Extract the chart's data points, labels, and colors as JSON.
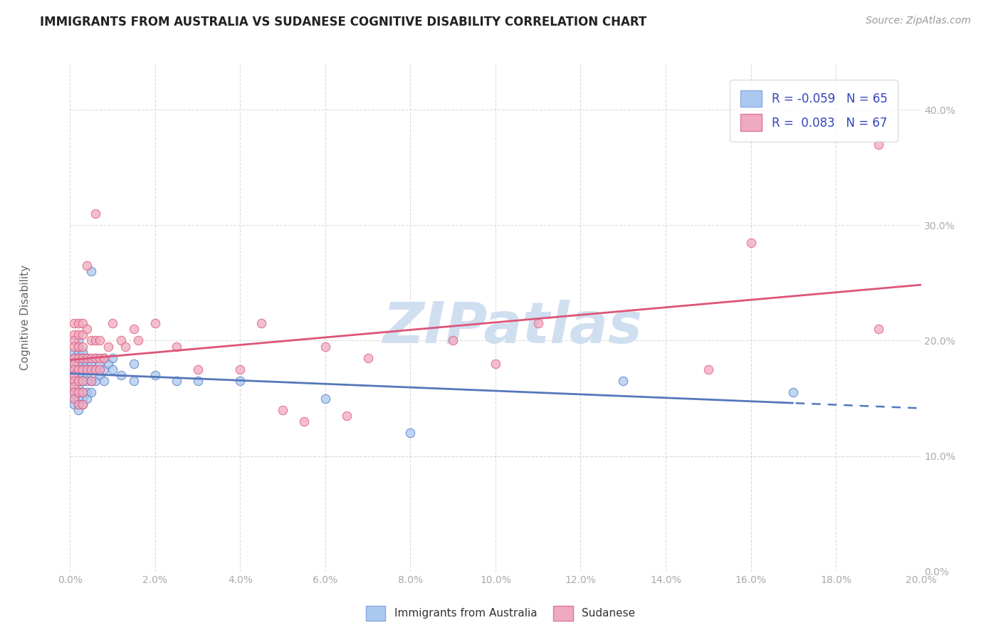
{
  "title": "IMMIGRANTS FROM AUSTRALIA VS SUDANESE COGNITIVE DISABILITY CORRELATION CHART",
  "source": "Source: ZipAtlas.com",
  "ylabel": "Cognitive Disability",
  "legend_label1": "Immigrants from Australia",
  "legend_label2": "Sudanese",
  "R1": -0.059,
  "N1": 65,
  "R2": 0.083,
  "N2": 67,
  "xlim": [
    0.0,
    0.2
  ],
  "ylim": [
    0.0,
    0.44
  ],
  "xticks": [
    0.0,
    0.02,
    0.04,
    0.06,
    0.08,
    0.1,
    0.12,
    0.14,
    0.16,
    0.18,
    0.2
  ],
  "yticks": [
    0.0,
    0.1,
    0.2,
    0.3,
    0.4
  ],
  "color_blue": "#aac8f0",
  "color_pink": "#f0aac0",
  "color_blue_line": "#5577bb",
  "color_pink_line": "#dd5577",
  "watermark": "ZIPatlas",
  "watermark_color": "#d0dff0",
  "background_color": "#ffffff",
  "grid_color": "#cccccc",
  "scatter_blue": [
    [
      0.001,
      0.19
    ],
    [
      0.001,
      0.185
    ],
    [
      0.001,
      0.18
    ],
    [
      0.001,
      0.175
    ],
    [
      0.001,
      0.17
    ],
    [
      0.001,
      0.165
    ],
    [
      0.001,
      0.16
    ],
    [
      0.001,
      0.155
    ],
    [
      0.001,
      0.15
    ],
    [
      0.001,
      0.145
    ],
    [
      0.002,
      0.2
    ],
    [
      0.002,
      0.19
    ],
    [
      0.002,
      0.185
    ],
    [
      0.002,
      0.18
    ],
    [
      0.002,
      0.175
    ],
    [
      0.002,
      0.17
    ],
    [
      0.002,
      0.165
    ],
    [
      0.002,
      0.16
    ],
    [
      0.002,
      0.155
    ],
    [
      0.002,
      0.15
    ],
    [
      0.002,
      0.145
    ],
    [
      0.002,
      0.14
    ],
    [
      0.003,
      0.19
    ],
    [
      0.003,
      0.185
    ],
    [
      0.003,
      0.18
    ],
    [
      0.003,
      0.175
    ],
    [
      0.003,
      0.17
    ],
    [
      0.003,
      0.165
    ],
    [
      0.003,
      0.155
    ],
    [
      0.003,
      0.15
    ],
    [
      0.003,
      0.145
    ],
    [
      0.004,
      0.185
    ],
    [
      0.004,
      0.18
    ],
    [
      0.004,
      0.175
    ],
    [
      0.004,
      0.17
    ],
    [
      0.004,
      0.165
    ],
    [
      0.004,
      0.155
    ],
    [
      0.004,
      0.15
    ],
    [
      0.005,
      0.26
    ],
    [
      0.005,
      0.18
    ],
    [
      0.005,
      0.175
    ],
    [
      0.005,
      0.165
    ],
    [
      0.005,
      0.155
    ],
    [
      0.006,
      0.185
    ],
    [
      0.006,
      0.175
    ],
    [
      0.006,
      0.165
    ],
    [
      0.007,
      0.18
    ],
    [
      0.007,
      0.17
    ],
    [
      0.008,
      0.185
    ],
    [
      0.008,
      0.175
    ],
    [
      0.008,
      0.165
    ],
    [
      0.009,
      0.18
    ],
    [
      0.01,
      0.185
    ],
    [
      0.01,
      0.175
    ],
    [
      0.012,
      0.17
    ],
    [
      0.015,
      0.18
    ],
    [
      0.015,
      0.165
    ],
    [
      0.02,
      0.17
    ],
    [
      0.025,
      0.165
    ],
    [
      0.03,
      0.165
    ],
    [
      0.04,
      0.165
    ],
    [
      0.06,
      0.15
    ],
    [
      0.08,
      0.12
    ],
    [
      0.13,
      0.165
    ],
    [
      0.17,
      0.155
    ]
  ],
  "scatter_pink": [
    [
      0.001,
      0.215
    ],
    [
      0.001,
      0.205
    ],
    [
      0.001,
      0.2
    ],
    [
      0.001,
      0.195
    ],
    [
      0.001,
      0.185
    ],
    [
      0.001,
      0.18
    ],
    [
      0.001,
      0.175
    ],
    [
      0.001,
      0.17
    ],
    [
      0.001,
      0.165
    ],
    [
      0.001,
      0.16
    ],
    [
      0.001,
      0.155
    ],
    [
      0.001,
      0.15
    ],
    [
      0.002,
      0.215
    ],
    [
      0.002,
      0.205
    ],
    [
      0.002,
      0.195
    ],
    [
      0.002,
      0.185
    ],
    [
      0.002,
      0.175
    ],
    [
      0.002,
      0.165
    ],
    [
      0.002,
      0.155
    ],
    [
      0.002,
      0.145
    ],
    [
      0.003,
      0.215
    ],
    [
      0.003,
      0.205
    ],
    [
      0.003,
      0.195
    ],
    [
      0.003,
      0.185
    ],
    [
      0.003,
      0.175
    ],
    [
      0.003,
      0.165
    ],
    [
      0.003,
      0.155
    ],
    [
      0.003,
      0.145
    ],
    [
      0.004,
      0.21
    ],
    [
      0.004,
      0.265
    ],
    [
      0.004,
      0.185
    ],
    [
      0.004,
      0.175
    ],
    [
      0.005,
      0.2
    ],
    [
      0.005,
      0.185
    ],
    [
      0.005,
      0.175
    ],
    [
      0.005,
      0.165
    ],
    [
      0.006,
      0.31
    ],
    [
      0.006,
      0.2
    ],
    [
      0.006,
      0.185
    ],
    [
      0.006,
      0.175
    ],
    [
      0.007,
      0.2
    ],
    [
      0.007,
      0.185
    ],
    [
      0.007,
      0.175
    ],
    [
      0.008,
      0.185
    ],
    [
      0.009,
      0.195
    ],
    [
      0.01,
      0.215
    ],
    [
      0.012,
      0.2
    ],
    [
      0.013,
      0.195
    ],
    [
      0.015,
      0.21
    ],
    [
      0.016,
      0.2
    ],
    [
      0.02,
      0.215
    ],
    [
      0.025,
      0.195
    ],
    [
      0.03,
      0.175
    ],
    [
      0.04,
      0.175
    ],
    [
      0.045,
      0.215
    ],
    [
      0.05,
      0.14
    ],
    [
      0.055,
      0.13
    ],
    [
      0.06,
      0.195
    ],
    [
      0.065,
      0.135
    ],
    [
      0.07,
      0.185
    ],
    [
      0.09,
      0.2
    ],
    [
      0.1,
      0.18
    ],
    [
      0.11,
      0.215
    ],
    [
      0.15,
      0.175
    ],
    [
      0.16,
      0.285
    ],
    [
      0.19,
      0.37
    ],
    [
      0.19,
      0.21
    ]
  ]
}
